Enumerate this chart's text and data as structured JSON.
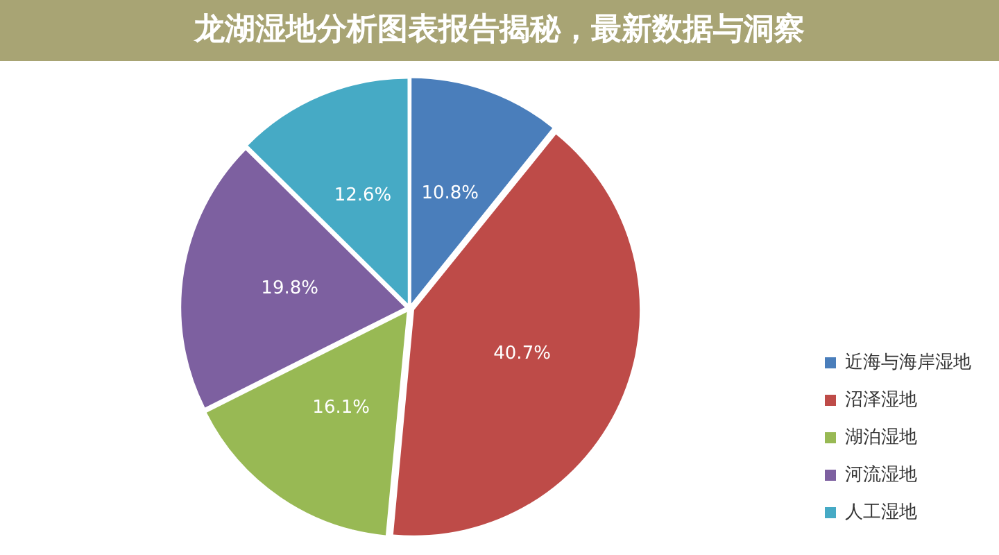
{
  "chart_data": {
    "type": "pie",
    "title": "龙湖湿地分析图表报告揭秘，最新数据与洞察",
    "categories": [
      "近海与海岸湿地",
      "沼泽湿地",
      "湖泊湿地",
      "河流湿地",
      "人工湿地"
    ],
    "values": [
      10.8,
      40.7,
      16.1,
      19.8,
      12.6
    ],
    "colors": [
      "#4a7ebb",
      "#be4b48",
      "#98b954",
      "#7d60a0",
      "#46aac5"
    ],
    "value_labels": [
      "10.8%",
      "40.7%",
      "16.1%",
      "19.8%",
      "12.6%"
    ],
    "legend": "right"
  }
}
